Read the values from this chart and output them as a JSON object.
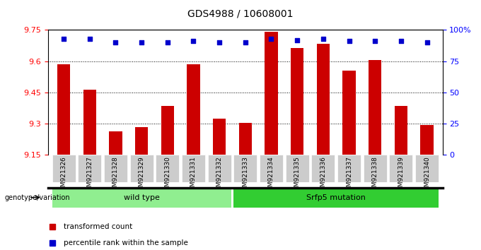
{
  "title": "GDS4988 / 10608001",
  "categories": [
    "GSM921326",
    "GSM921327",
    "GSM921328",
    "GSM921329",
    "GSM921330",
    "GSM921331",
    "GSM921332",
    "GSM921333",
    "GSM921334",
    "GSM921335",
    "GSM921336",
    "GSM921337",
    "GSM921338",
    "GSM921339",
    "GSM921340"
  ],
  "bar_values": [
    9.585,
    9.465,
    9.265,
    9.285,
    9.385,
    9.585,
    9.325,
    9.305,
    9.74,
    9.665,
    9.685,
    9.555,
    9.605,
    9.385,
    9.295
  ],
  "percentile_values": [
    93,
    93,
    90,
    90,
    90,
    91,
    90,
    90,
    93,
    92,
    93,
    91,
    91,
    91,
    90
  ],
  "bar_color": "#cc0000",
  "percentile_color": "#0000cc",
  "ymin": 9.15,
  "ymax": 9.75,
  "yright_min": 0,
  "yright_max": 100,
  "yticks_left": [
    9.15,
    9.3,
    9.45,
    9.6,
    9.75
  ],
  "yticks_right": [
    0,
    25,
    50,
    75,
    100
  ],
  "ytick_labels_right": [
    "0",
    "25",
    "50",
    "75",
    "100%"
  ],
  "grid_lines": [
    9.3,
    9.45,
    9.6
  ],
  "wild_type_label": "wild type",
  "srfp5_label": "Srfp5 mutation",
  "wild_type_color": "#90ee90",
  "srfp5_color": "#32cd32",
  "genotype_label": "genotype/variation",
  "legend_bar_label": "transformed count",
  "legend_pct_label": "percentile rank within the sample",
  "bar_width": 0.5
}
